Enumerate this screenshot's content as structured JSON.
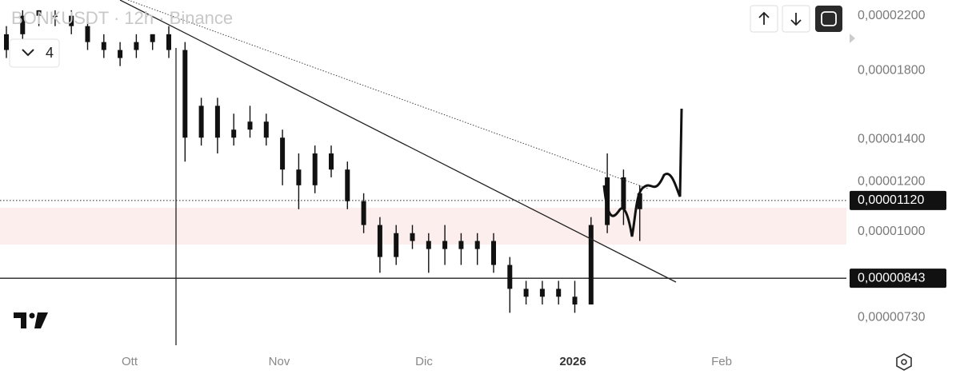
{
  "chart_data": {
    "type": "candlestick",
    "title": "BONKUSDT · 12h · Binance",
    "indicator_count": "4",
    "color": "#111111",
    "log_scale": true,
    "ylim": [
      6.6e-06,
      2.33e-05
    ],
    "yticks": [
      {
        "value": 2.2e-05,
        "label": "0,00002200"
      },
      {
        "value": 1.8e-05,
        "label": "0,00001800"
      },
      {
        "value": 1.4e-05,
        "label": "0,00001400"
      },
      {
        "value": 1.2e-05,
        "label": "0,00001200"
      },
      {
        "value": 1e-05,
        "label": "0,00001000"
      },
      {
        "value": 7.3e-06,
        "label": "0,00000730"
      }
    ],
    "price_markers": [
      {
        "value": 1.12e-05,
        "label": "0,00001120"
      },
      {
        "value": 8.43e-06,
        "label": "0,00000843"
      }
    ],
    "xlabels": [
      "Ott",
      "Nov",
      "Dic",
      "2026",
      "Feb"
    ],
    "open": [
      1.941e-05,
      2.056e-05,
      2.2e-05,
      2.2e-05,
      2.2e-05,
      2.118e-05,
      1.998e-05,
      1.885e-05,
      1.941e-05,
      1.998e-05,
      2.056e-05,
      1.941e-05,
      1.409e-05,
      1.583e-05,
      1.409e-05,
      1.451e-05,
      1.494e-05,
      1.409e-05,
      1.254e-05,
      1.184e-05,
      1.33e-05,
      1.254e-05,
      1.117e-05,
      1.024e-05,
      9.11e-06,
      9.94e-06,
      9.66e-06,
      9.38e-06,
      9.66e-06,
      9.38e-06,
      9.66e-06,
      8.85e-06,
      8.11e-06,
      7.88e-06,
      8.11e-06,
      7.88e-06,
      7.66e-06,
      1.024e-05,
      1.219e-05,
      1.085e-05
    ],
    "high": [
      2.118e-05,
      2.244e-05,
      2.244e-05,
      2.244e-05,
      2.244e-05,
      2.2e-05,
      2.056e-05,
      1.998e-05,
      2.056e-05,
      2.056e-05,
      2.118e-05,
      1.998e-05,
      1.63e-05,
      1.63e-05,
      1.538e-05,
      1.583e-05,
      1.538e-05,
      1.451e-05,
      1.33e-05,
      1.369e-05,
      1.369e-05,
      1.291e-05,
      1.15e-05,
      1.054e-05,
      1.024e-05,
      1.024e-05,
      9.94e-06,
      1.024e-05,
      9.94e-06,
      9.94e-06,
      9.94e-06,
      9.11e-06,
      8.35e-06,
      8.35e-06,
      8.35e-06,
      8.35e-06,
      1.054e-05,
      1.33e-05,
      1.254e-05,
      1.184e-05
    ],
    "low": [
      1.885e-05,
      1.998e-05,
      2.118e-05,
      2.118e-05,
      2.056e-05,
      1.941e-05,
      1.885e-05,
      1.83e-05,
      1.885e-05,
      1.941e-05,
      1.885e-05,
      1.291e-05,
      1.369e-05,
      1.33e-05,
      1.369e-05,
      1.409e-05,
      1.369e-05,
      1.184e-05,
      1.085e-05,
      1.15e-05,
      1.219e-05,
      1.085e-05,
      9.94e-06,
      8.6e-06,
      8.85e-06,
      9.38e-06,
      8.6e-06,
      8.85e-06,
      8.85e-06,
      8.85e-06,
      8.6e-06,
      7.43e-06,
      7.66e-06,
      7.66e-06,
      7.66e-06,
      7.43e-06,
      7.66e-06,
      9.94e-06,
      1.024e-05,
      9.66e-06
    ],
    "close": [
      2.056e-05,
      2.2e-05,
      2.244e-05,
      2.2e-05,
      2.118e-05,
      1.998e-05,
      1.941e-05,
      1.941e-05,
      1.998e-05,
      2.056e-05,
      1.941e-05,
      1.409e-05,
      1.583e-05,
      1.409e-05,
      1.451e-05,
      1.494e-05,
      1.409e-05,
      1.254e-05,
      1.184e-05,
      1.33e-05,
      1.254e-05,
      1.117e-05,
      1.024e-05,
      9.11e-06,
      9.94e-06,
      9.66e-06,
      9.38e-06,
      9.66e-06,
      9.38e-06,
      9.66e-06,
      8.85e-06,
      8.11e-06,
      7.88e-06,
      8.11e-06,
      7.88e-06,
      7.66e-06,
      1.024e-05,
      1.219e-05,
      1.085e-05,
      1.15e-05
    ]
  }
}
